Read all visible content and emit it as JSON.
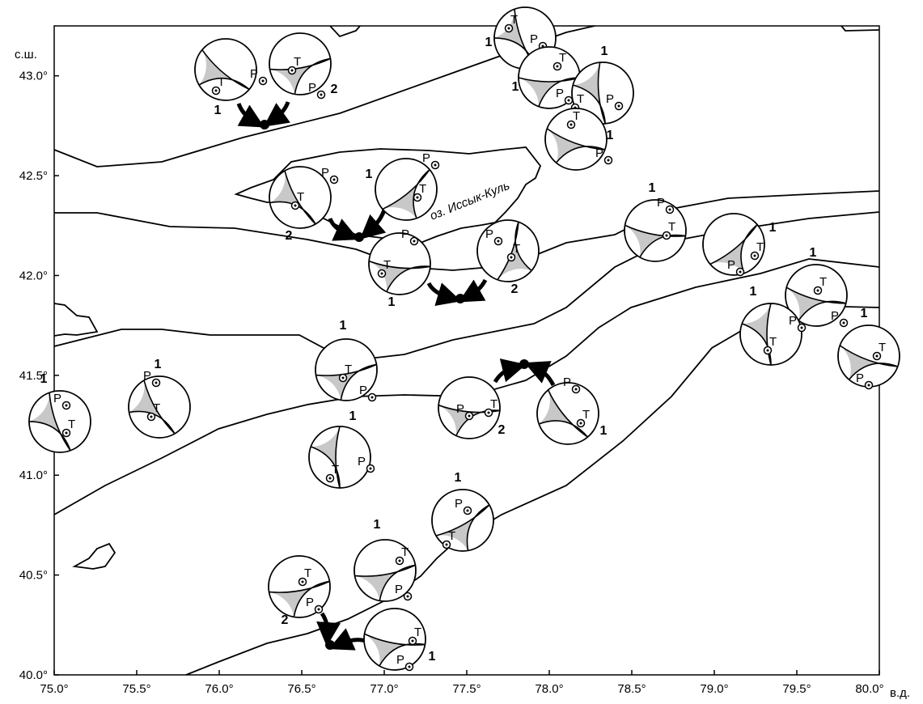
{
  "map": {
    "lon_range": [
      75.0,
      80.0
    ],
    "lat_range": [
      40.0,
      43.25
    ],
    "x_ticks": [
      {
        "value": 75.0,
        "label": "75.0°"
      },
      {
        "value": 75.5,
        "label": "75.5°"
      },
      {
        "value": 76.0,
        "label": "76.0°"
      },
      {
        "value": 76.5,
        "label": "76.5°"
      },
      {
        "value": 77.0,
        "label": "77.0°"
      },
      {
        "value": 77.5,
        "label": "77.5°"
      },
      {
        "value": 78.0,
        "label": "78.0°"
      },
      {
        "value": 78.5,
        "label": "78.5°"
      },
      {
        "value": 79.0,
        "label": "79.0°"
      },
      {
        "value": 79.5,
        "label": "79.5°"
      },
      {
        "value": 80.0,
        "label": "80.0°"
      }
    ],
    "y_ticks": [
      {
        "value": 40.0,
        "label": "40.0°"
      },
      {
        "value": 40.5,
        "label": "40.5°"
      },
      {
        "value": 41.0,
        "label": "41.0°"
      },
      {
        "value": 41.5,
        "label": "41.5°"
      },
      {
        "value": 42.0,
        "label": "42.0°"
      },
      {
        "value": 42.5,
        "label": "42.5°"
      },
      {
        "value": 43.0,
        "label": "43.0°"
      }
    ],
    "x_unit": "в.д.",
    "y_unit": "с.ш.",
    "lake_label": "оз. Иссык-Куль",
    "colors": {
      "shade": "#c8c8c8",
      "line": "#000000"
    }
  },
  "mechanisms": [
    {
      "label": "1",
      "t": "T",
      "p": "P"
    },
    {
      "label": "2",
      "t": "T",
      "p": "P"
    },
    {
      "label": "1",
      "t": "T",
      "p": "P"
    },
    {
      "label": "1",
      "t": "T",
      "p": "P"
    },
    {
      "label": "1",
      "t": "T",
      "p": "P"
    },
    {
      "label": "1",
      "t": "T",
      "p": "P"
    },
    {
      "label": "2",
      "t": "T",
      "p": "P"
    },
    {
      "label": "1",
      "t": "T",
      "p": "P"
    },
    {
      "label": "1",
      "t": "T",
      "p": "P"
    },
    {
      "label": "2",
      "t": "T",
      "p": "P"
    },
    {
      "label": "1",
      "t": "T",
      "p": "P"
    },
    {
      "label": "1",
      "t": "T",
      "p": "P"
    },
    {
      "label": "1",
      "t": "T",
      "p": "P"
    },
    {
      "label": "1",
      "t": "T",
      "p": "P"
    },
    {
      "label": "1",
      "t": "T",
      "p": "P"
    },
    {
      "label": "1",
      "t": "T",
      "p": "P"
    },
    {
      "label": "1",
      "t": "T",
      "p": "P"
    },
    {
      "label": "1",
      "t": "T",
      "p": "P"
    },
    {
      "label": "2",
      "t": "T",
      "p": "P"
    },
    {
      "label": "1",
      "t": "T",
      "p": "P"
    },
    {
      "label": "1",
      "t": "T",
      "p": "P"
    },
    {
      "label": "1",
      "t": "T",
      "p": "P"
    },
    {
      "label": "1",
      "t": "T",
      "p": "P"
    },
    {
      "label": "2",
      "t": "T",
      "p": "P"
    },
    {
      "label": "1",
      "t": "T",
      "p": "P"
    }
  ]
}
